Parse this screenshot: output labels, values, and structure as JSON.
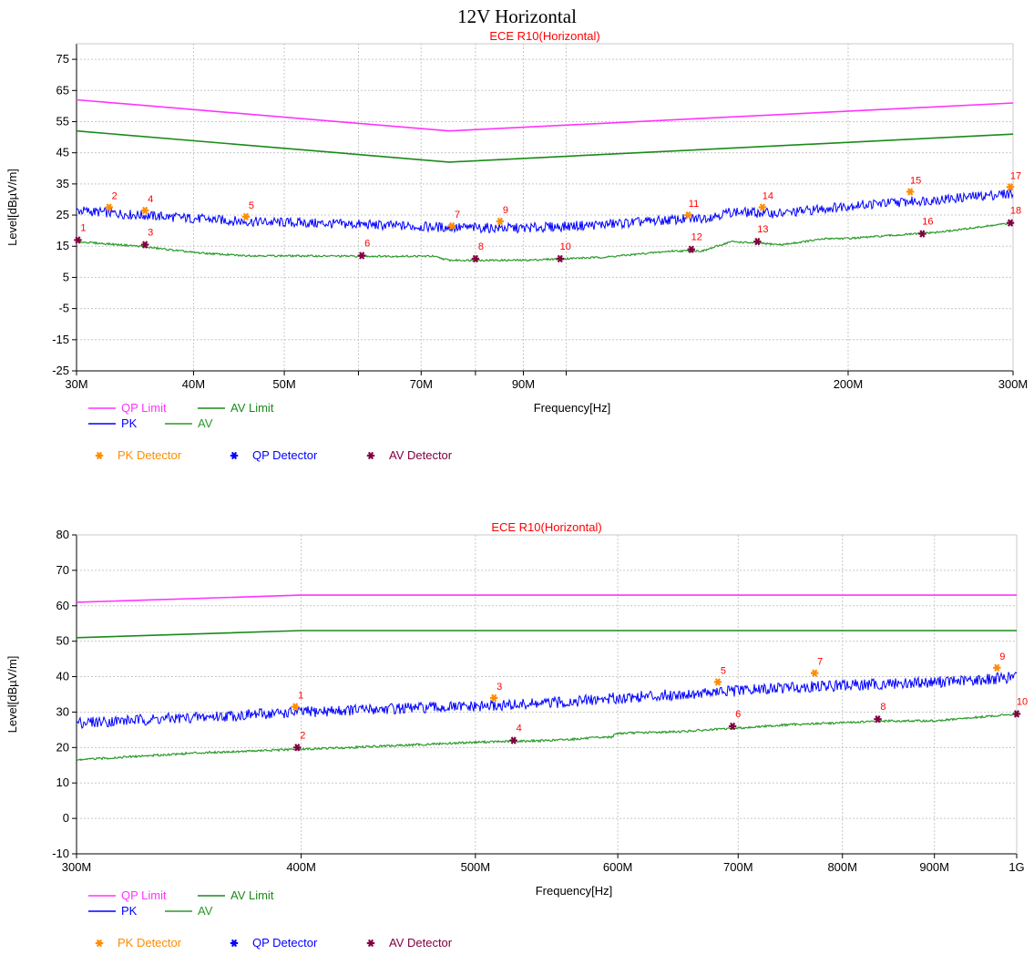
{
  "page_title": "12V Horizontal",
  "colors": {
    "qp_limit": "#ff33ff",
    "av_limit": "#1a8a1a",
    "pk_trace": "#0000ff",
    "av_trace": "#2a9a2a",
    "pk_detector": "#ff8c00",
    "qp_detector": "#0000ff",
    "av_detector": "#800040",
    "title": "#ff0000",
    "marker_label": "#ff0000"
  },
  "legend": {
    "qp_limit": "QP Limit",
    "av_limit": "AV Limit",
    "pk": "PK",
    "av": "AV",
    "pk_detector": "PK Detector",
    "qp_detector": "QP Detector",
    "av_detector": "AV Detector"
  },
  "chart_data": [
    {
      "type": "line",
      "title": "ECE R10(Horizontal)",
      "xlabel": "Frequency[Hz]",
      "ylabel": "Level[dBµV/m]",
      "xscale": "log",
      "xlim": [
        30,
        300
      ],
      "ylim": [
        -25,
        80
      ],
      "yticks": [
        -25,
        -15,
        -5,
        5,
        15,
        25,
        35,
        45,
        55,
        65,
        75
      ],
      "xticks": [
        {
          "v": 30,
          "label": "30M"
        },
        {
          "v": 40,
          "label": "40M"
        },
        {
          "v": 50,
          "label": "50M"
        },
        {
          "v": 60,
          "label": ""
        },
        {
          "v": 70,
          "label": "70M"
        },
        {
          "v": 80,
          "label": ""
        },
        {
          "v": 90,
          "label": "90M"
        },
        {
          "v": 100,
          "label": ""
        },
        {
          "v": 200,
          "label": "200M"
        },
        {
          "v": 300,
          "label": "300M"
        }
      ],
      "limits": {
        "qp_limit": [
          [
            30,
            62
          ],
          [
            75,
            52
          ],
          [
            300,
            61
          ]
        ],
        "av_limit": [
          [
            30,
            52
          ],
          [
            75,
            42
          ],
          [
            300,
            51
          ]
        ]
      },
      "traces": {
        "pk": [
          [
            30,
            26.5
          ],
          [
            35,
            25
          ],
          [
            45,
            23
          ],
          [
            60,
            22
          ],
          [
            75,
            21
          ],
          [
            90,
            20.8
          ],
          [
            110,
            22
          ],
          [
            130,
            23.5
          ],
          [
            140,
            24
          ],
          [
            150,
            26
          ],
          [
            170,
            25.5
          ],
          [
            200,
            28
          ],
          [
            250,
            30
          ],
          [
            300,
            32
          ]
        ],
        "av": [
          [
            30,
            16.5
          ],
          [
            35,
            15
          ],
          [
            40,
            13
          ],
          [
            45,
            12
          ],
          [
            60,
            11.8
          ],
          [
            72,
            11.8
          ],
          [
            75,
            10.5
          ],
          [
            90,
            10.5
          ],
          [
            110,
            11.5
          ],
          [
            130,
            13.5
          ],
          [
            140,
            13.5
          ],
          [
            150,
            16.5
          ],
          [
            170,
            15.5
          ],
          [
            190,
            17.5
          ],
          [
            200,
            17.5
          ],
          [
            250,
            19.5
          ],
          [
            300,
            22.5
          ]
        ]
      },
      "markers": {
        "pk": [
          {
            "id": "2",
            "f": 32.5,
            "level": 27.5
          },
          {
            "id": "4",
            "f": 35.5,
            "level": 26.5
          },
          {
            "id": "5",
            "f": 45.5,
            "level": 24.5
          },
          {
            "id": "7",
            "f": 75.5,
            "level": 21.5
          },
          {
            "id": "9",
            "f": 85,
            "level": 23
          },
          {
            "id": "11",
            "f": 135,
            "level": 25
          },
          {
            "id": "14",
            "f": 162,
            "level": 27.5
          },
          {
            "id": "15",
            "f": 233,
            "level": 32.5
          },
          {
            "id": "17",
            "f": 298,
            "level": 34
          }
        ],
        "av": [
          {
            "id": "1",
            "f": 30.1,
            "level": 17
          },
          {
            "id": "3",
            "f": 35.5,
            "level": 15.5
          },
          {
            "id": "6",
            "f": 60.5,
            "level": 12
          },
          {
            "id": "8",
            "f": 80,
            "level": 11
          },
          {
            "id": "10",
            "f": 98.5,
            "level": 11
          },
          {
            "id": "12",
            "f": 136,
            "level": 14
          },
          {
            "id": "13",
            "f": 160,
            "level": 16.5
          },
          {
            "id": "16",
            "f": 240,
            "level": 19
          },
          {
            "id": "18",
            "f": 298,
            "level": 22.5
          }
        ]
      }
    },
    {
      "type": "line",
      "title": "ECE R10(Horizontal)",
      "xlabel": "Frequency[Hz]",
      "ylabel": "Level[dBµV/m]",
      "xscale": "log",
      "xlim": [
        300,
        1000
      ],
      "ylim": [
        -10,
        80
      ],
      "yticks": [
        -10,
        0,
        10,
        20,
        30,
        40,
        50,
        60,
        70,
        80
      ],
      "xticks": [
        {
          "v": 300,
          "label": "300M"
        },
        {
          "v": 400,
          "label": "400M"
        },
        {
          "v": 500,
          "label": "500M"
        },
        {
          "v": 600,
          "label": "600M"
        },
        {
          "v": 700,
          "label": "700M"
        },
        {
          "v": 800,
          "label": "800M"
        },
        {
          "v": 900,
          "label": "900M"
        },
        {
          "v": 1000,
          "label": "1G"
        }
      ],
      "limits": {
        "qp_limit": [
          [
            300,
            61
          ],
          [
            400,
            63
          ],
          [
            1000,
            63
          ]
        ],
        "av_limit": [
          [
            300,
            51
          ],
          [
            400,
            53
          ],
          [
            1000,
            53
          ]
        ]
      },
      "traces": {
        "pk": [
          [
            300,
            27
          ],
          [
            350,
            28.5
          ],
          [
            400,
            30
          ],
          [
            450,
            31
          ],
          [
            500,
            31.5
          ],
          [
            550,
            32.5
          ],
          [
            600,
            34
          ],
          [
            650,
            35
          ],
          [
            700,
            36
          ],
          [
            750,
            37
          ],
          [
            800,
            37.5
          ],
          [
            850,
            38
          ],
          [
            900,
            38.5
          ],
          [
            950,
            39
          ],
          [
            1000,
            40
          ]
        ],
        "av": [
          [
            300,
            16.5
          ],
          [
            350,
            18.5
          ],
          [
            400,
            19.5
          ],
          [
            450,
            20.5
          ],
          [
            500,
            21.5
          ],
          [
            550,
            22
          ],
          [
            595,
            23
          ],
          [
            600,
            24
          ],
          [
            650,
            24.5
          ],
          [
            700,
            25.5
          ],
          [
            750,
            26.5
          ],
          [
            800,
            27
          ],
          [
            850,
            27.5
          ],
          [
            900,
            27.5
          ],
          [
            950,
            28.5
          ],
          [
            1000,
            29.5
          ]
        ]
      },
      "markers": {
        "pk": [
          {
            "id": "1",
            "f": 397,
            "level": 31.5
          },
          {
            "id": "3",
            "f": 512,
            "level": 34
          },
          {
            "id": "5",
            "f": 682,
            "level": 38.5
          },
          {
            "id": "7",
            "f": 772,
            "level": 41
          },
          {
            "id": "9",
            "f": 975,
            "level": 42.5
          }
        ],
        "av": [
          {
            "id": "2",
            "f": 398,
            "level": 20
          },
          {
            "id": "4",
            "f": 525,
            "level": 22
          },
          {
            "id": "6",
            "f": 695,
            "level": 26
          },
          {
            "id": "8",
            "f": 837,
            "level": 28
          },
          {
            "id": "10",
            "f": 1000,
            "level": 29.5
          }
        ]
      }
    }
  ]
}
